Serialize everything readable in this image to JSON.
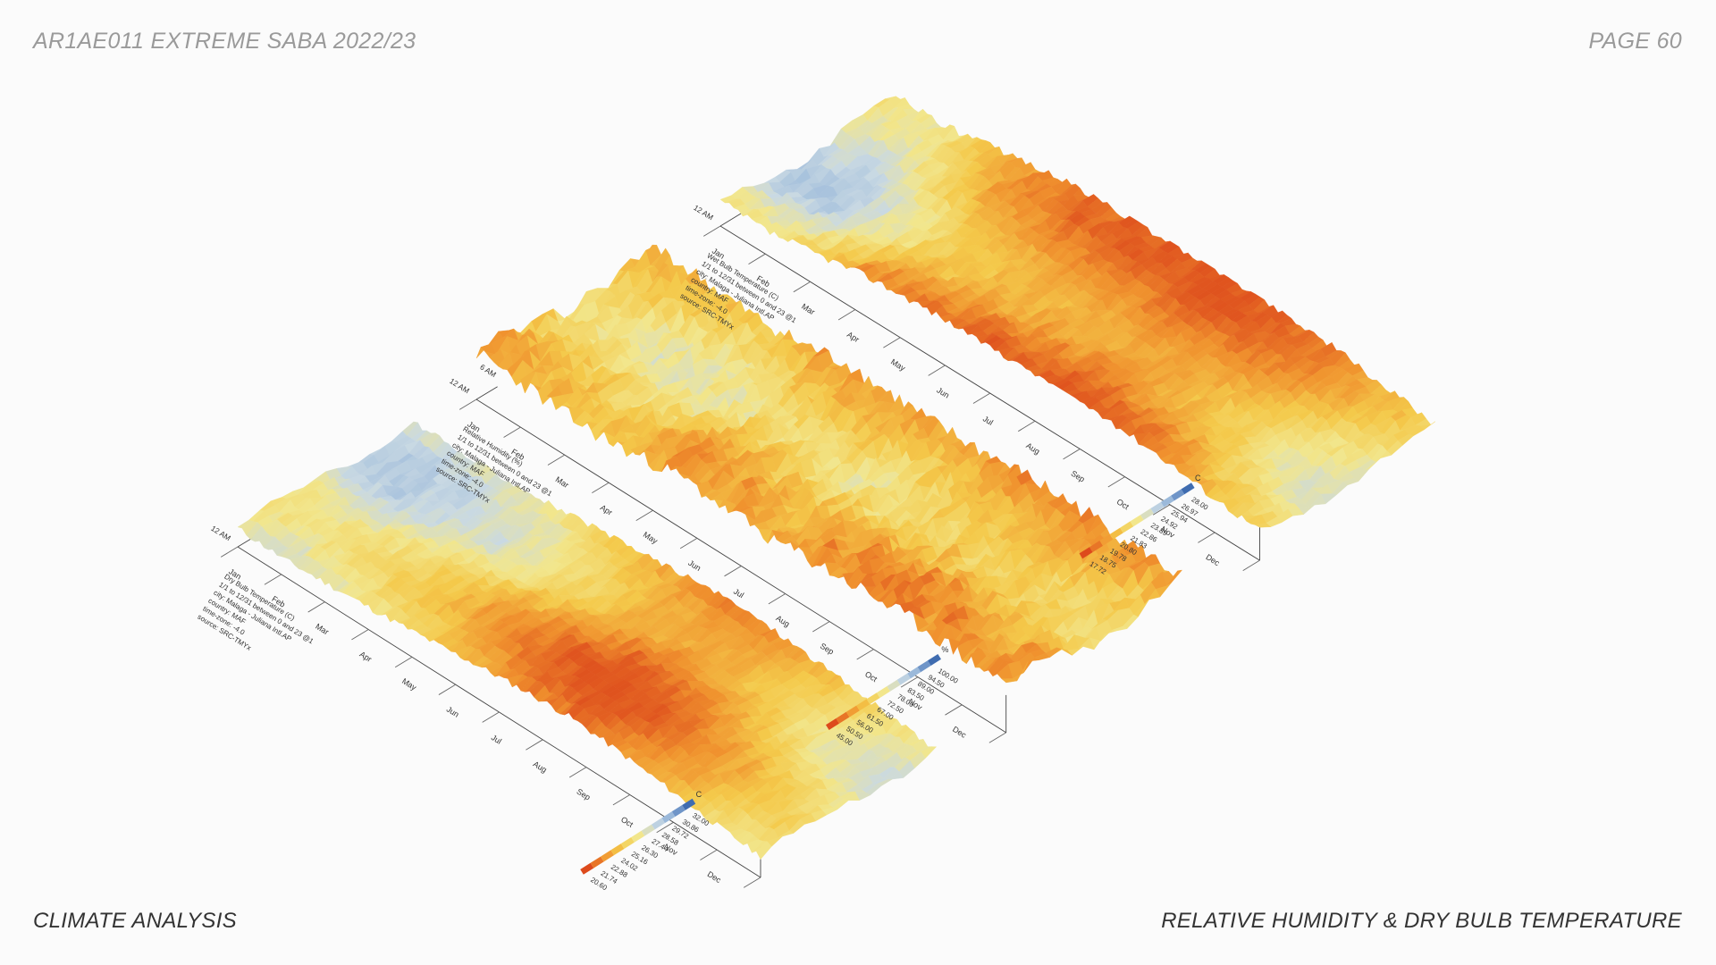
{
  "header": {
    "title": "AR1AE011 EXTREME SABA 2022/23",
    "page": "PAGE 60"
  },
  "footer": {
    "section": "CLIMATE ANALYSIS",
    "subject": "RELATIVE HUMIDITY & DRY BULB TEMPERATURE"
  },
  "colors": {
    "ramp": [
      "#3f6cb0",
      "#8fb1d8",
      "#c9d9e3",
      "#f2e68c",
      "#f4c94a",
      "#f0922e",
      "#dd4a1c"
    ]
  },
  "chart_data": [
    {
      "type": "heatmap",
      "title": "",
      "info_lines": [
        "Dry Bulb Temperature (C)",
        "1/1 to 12/31 between 0 and 23 @1",
        "city: Malaga - Juliana Intl.AP",
        "country: MAF",
        "time-zone: -4.0",
        "source: SRC-TMYx"
      ],
      "x_ticks": [
        "Jan",
        "Feb",
        "Mar",
        "Apr",
        "May",
        "Jun",
        "Jul",
        "Aug",
        "Sep",
        "Oct",
        "Nov",
        "Dec"
      ],
      "y_ticks": [
        "12 AM"
      ],
      "unit": "C",
      "legend_values": [
        "32.00",
        "30.86",
        "29.72",
        "28.58",
        "27.44",
        "26.30",
        "25.16",
        "24.02",
        "22.88",
        "21.74",
        "20.60"
      ],
      "monthly_level": [
        0.42,
        0.38,
        0.45,
        0.52,
        0.62,
        0.74,
        0.84,
        0.9,
        0.82,
        0.7,
        0.56,
        0.48
      ]
    },
    {
      "type": "heatmap",
      "title": "",
      "info_lines": [
        "Relative Humidity (%)",
        "1/1 to 12/31 between 0 and 23 @1",
        "city: Malaga - Juliana Intl.AP",
        "country: MAF",
        "time-zone: -4.0",
        "source: SRC-TMYx"
      ],
      "x_ticks": [
        "Jan",
        "Feb",
        "Mar",
        "Apr",
        "May",
        "Jun",
        "Jul",
        "Aug",
        "Sep",
        "Oct",
        "Nov",
        "Dec"
      ],
      "y_ticks": [
        "12 AM",
        "6 AM"
      ],
      "unit": "%",
      "legend_values": [
        "100.00",
        "94.50",
        "89.00",
        "83.50",
        "78.00",
        "72.50",
        "67.00",
        "61.50",
        "56.00",
        "50.50",
        "45.00"
      ],
      "monthly_level": [
        0.66,
        0.62,
        0.55,
        0.58,
        0.72,
        0.68,
        0.64,
        0.7,
        0.74,
        0.76,
        0.7,
        0.68
      ]
    },
    {
      "type": "heatmap",
      "title": "",
      "info_lines": [
        "Wet Bulb Temperature (C)",
        "1/1 to 12/31 between 0 and 23 @1",
        "city: Malaga - Juliana Intl.AP",
        "country: MAF",
        "time-zone: -4.0",
        "source: SRC-TMYx"
      ],
      "x_ticks": [
        "Jan",
        "Feb",
        "Mar",
        "Apr",
        "May",
        "Jun",
        "Jul",
        "Aug",
        "Sep",
        "Oct",
        "Nov",
        "Dec"
      ],
      "y_ticks": [
        "12 AM"
      ],
      "unit": "C",
      "legend_values": [
        "28.00",
        "26.97",
        "25.94",
        "24.92",
        "23.89",
        "22.86",
        "21.83",
        "20.80",
        "19.78",
        "18.75",
        "17.72"
      ],
      "monthly_level": [
        0.4,
        0.38,
        0.55,
        0.72,
        0.8,
        0.84,
        0.86,
        0.88,
        0.84,
        0.76,
        0.6,
        0.5
      ]
    }
  ]
}
